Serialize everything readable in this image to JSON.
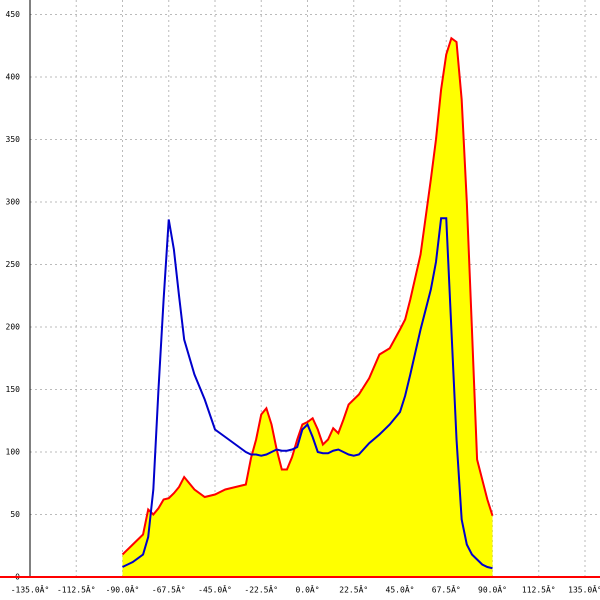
{
  "chart_data": {
    "type": "area",
    "x": [
      -90,
      -85,
      -80,
      -77.5,
      -75,
      -72.5,
      -70,
      -67.5,
      -65,
      -62.5,
      -60,
      -55,
      -50,
      -45,
      -40,
      -35,
      -30,
      -27.5,
      -25,
      -22.5,
      -20,
      -17.5,
      -15,
      -12.5,
      -10,
      -7.5,
      -5,
      -2.5,
      0,
      2.5,
      5,
      7.5,
      10,
      12.5,
      15,
      17.5,
      20,
      22.5,
      25,
      30,
      35,
      40,
      45,
      47.5,
      50,
      55,
      60,
      62.5,
      65,
      67.5,
      70,
      72.5,
      75,
      77.5,
      80,
      82.5,
      85,
      87.5,
      90
    ],
    "series": [
      {
        "color": "#ff0000",
        "fill": "#ffff00",
        "values": [
          18,
          26,
          34,
          54,
          50,
          55,
          62,
          63,
          67,
          72,
          80,
          70,
          64,
          66,
          70,
          72,
          74,
          95,
          110,
          130,
          135,
          122,
          102,
          86,
          86,
          96,
          110,
          122,
          124,
          127,
          118,
          106,
          110,
          119,
          115,
          126,
          138,
          142,
          146,
          159,
          178,
          183,
          198,
          206,
          222,
          258,
          318,
          350,
          390,
          418,
          431,
          428,
          382,
          300,
          198,
          94,
          78,
          62,
          49
        ]
      },
      {
        "color": "#0000cc",
        "values": [
          8,
          12,
          18,
          32,
          70,
          150,
          222,
          286,
          262,
          225,
          190,
          162,
          142,
          118,
          112,
          106,
          100,
          98,
          98,
          97,
          98,
          100,
          102,
          101,
          101,
          102,
          104,
          118,
          122,
          112,
          100,
          99,
          99,
          101,
          102,
          100,
          98,
          97,
          98,
          107,
          114,
          122,
          132,
          145,
          162,
          198,
          230,
          252,
          287,
          287,
          198,
          110,
          46,
          26,
          18,
          14,
          10,
          8,
          7
        ]
      }
    ],
    "xlim": [
      -135,
      135
    ],
    "xticks": [
      {
        "value": -135,
        "label": "-135.0Â°"
      },
      {
        "value": -112.5,
        "label": "-112.5Â°"
      },
      {
        "value": -90,
        "label": "-90.0Â°"
      },
      {
        "value": -67.5,
        "label": "-67.5Â°"
      },
      {
        "value": -45,
        "label": "-45.0Â°"
      },
      {
        "value": -22.5,
        "label": "-22.5Â°"
      },
      {
        "value": 0,
        "label": "0.0Â°"
      },
      {
        "value": 22.5,
        "label": "22.5Â°"
      },
      {
        "value": 45,
        "label": "45.0Â°"
      },
      {
        "value": 67.5,
        "label": "67.5Â°"
      },
      {
        "value": 90,
        "label": "90.0Â°"
      },
      {
        "value": 112.5,
        "label": "112.5Â°"
      },
      {
        "value": 135,
        "label": "135.0Â°"
      }
    ],
    "ylim": [
      0,
      450
    ],
    "yticks": [
      0,
      50,
      100,
      150,
      200,
      250,
      300,
      350,
      400,
      450
    ],
    "grid": true
  }
}
